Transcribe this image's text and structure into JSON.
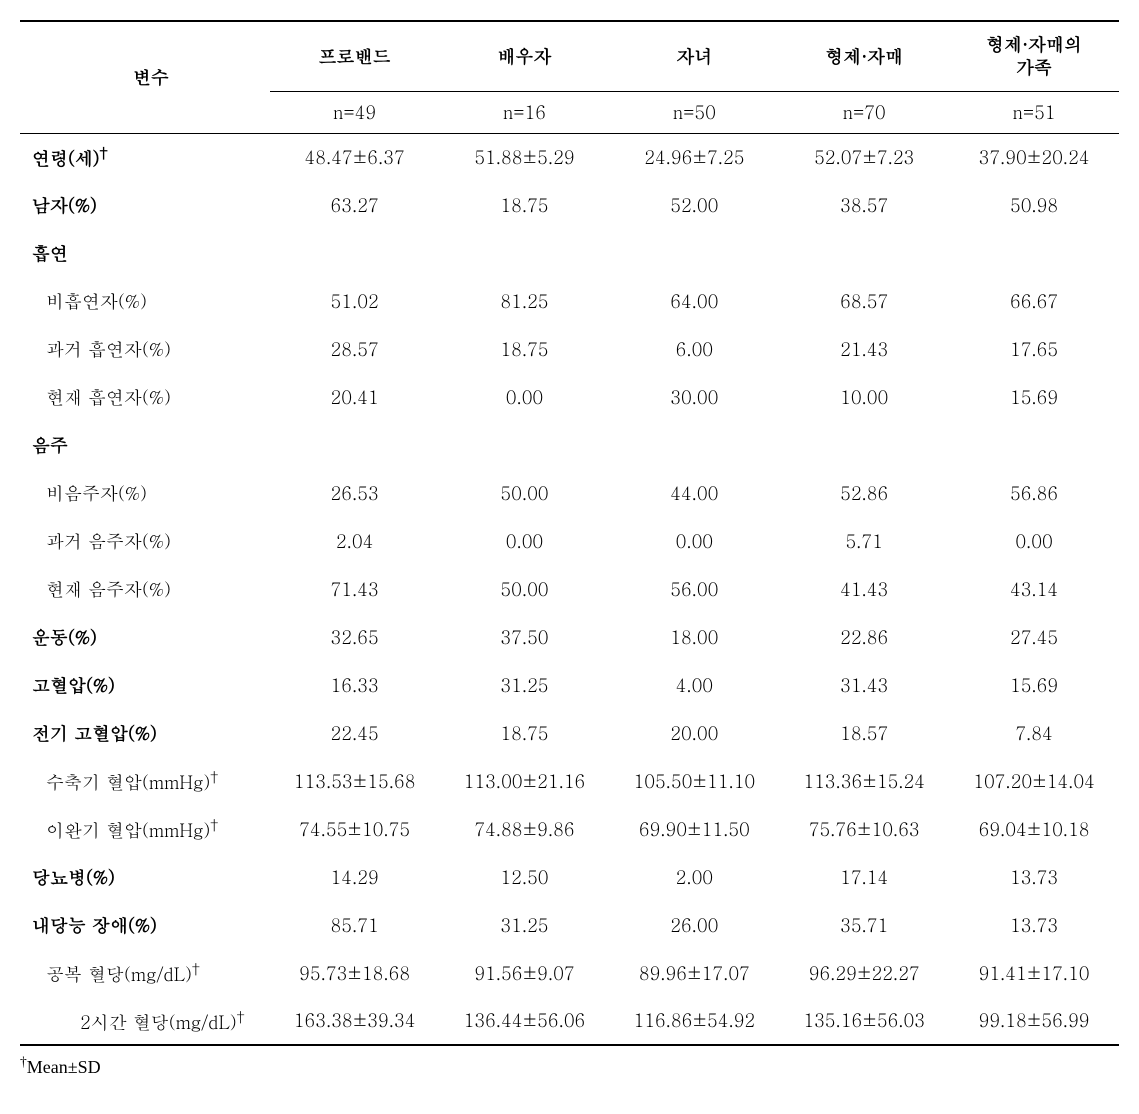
{
  "header": {
    "var_label": "변수",
    "groups": [
      "프로밴드",
      "배우자",
      "자녀",
      "형제·자매",
      "형제·자매의\n가족"
    ],
    "n_labels": [
      "n=49",
      "n=16",
      "n=50",
      "n=70",
      "n=51"
    ]
  },
  "rows": [
    {
      "label": "연령(세)†",
      "bold": true,
      "indent": 0,
      "values": [
        "48.47±6.37",
        "51.88±5.29",
        "24.96±7.25",
        "52.07±7.23",
        "37.90±20.24"
      ]
    },
    {
      "label": "남자(%)",
      "bold": true,
      "indent": 0,
      "values": [
        "63.27",
        "18.75",
        "52.00",
        "38.57",
        "50.98"
      ]
    },
    {
      "label": "흡연",
      "bold": true,
      "indent": 0,
      "section": true
    },
    {
      "label": "비흡연자(%)",
      "bold": false,
      "indent": 1,
      "values": [
        "51.02",
        "81.25",
        "64.00",
        "68.57",
        "66.67"
      ]
    },
    {
      "label": "과거 흡연자(%)",
      "bold": false,
      "indent": 1,
      "values": [
        "28.57",
        "18.75",
        "6.00",
        "21.43",
        "17.65"
      ]
    },
    {
      "label": "현재 흡연자(%)",
      "bold": false,
      "indent": 1,
      "values": [
        "20.41",
        "0.00",
        "30.00",
        "10.00",
        "15.69"
      ]
    },
    {
      "label": "음주",
      "bold": true,
      "indent": 0,
      "section": true
    },
    {
      "label": "비음주자(%)",
      "bold": false,
      "indent": 1,
      "values": [
        "26.53",
        "50.00",
        "44.00",
        "52.86",
        "56.86"
      ]
    },
    {
      "label": "과거 음주자(%)",
      "bold": false,
      "indent": 1,
      "values": [
        "2.04",
        "0.00",
        "0.00",
        "5.71",
        "0.00"
      ]
    },
    {
      "label": "현재 음주자(%)",
      "bold": false,
      "indent": 1,
      "values": [
        "71.43",
        "50.00",
        "56.00",
        "41.43",
        "43.14"
      ]
    },
    {
      "label": "운동(%)",
      "bold": true,
      "indent": 0,
      "values": [
        "32.65",
        "37.50",
        "18.00",
        "22.86",
        "27.45"
      ]
    },
    {
      "label": "고혈압(%)",
      "bold": true,
      "indent": 0,
      "values": [
        "16.33",
        "31.25",
        "4.00",
        "31.43",
        "15.69"
      ]
    },
    {
      "label": "전기 고혈압(%)",
      "bold": true,
      "indent": 0,
      "values": [
        "22.45",
        "18.75",
        "20.00",
        "18.57",
        "7.84"
      ]
    },
    {
      "label": "수축기 혈압(mmHg)†",
      "bold": false,
      "indent": 1,
      "values": [
        "113.53±15.68",
        "113.00±21.16",
        "105.50±11.10",
        "113.36±15.24",
        "107.20±14.04"
      ]
    },
    {
      "label": "이완기 혈압(mmHg)†",
      "bold": false,
      "indent": 1,
      "values": [
        "74.55±10.75",
        "74.88±9.86",
        "69.90±11.50",
        "75.76±10.63",
        "69.04±10.18"
      ]
    },
    {
      "label": "당뇨병(%)",
      "bold": true,
      "indent": 0,
      "values": [
        "14.29",
        "12.50",
        "2.00",
        "17.14",
        "13.73"
      ]
    },
    {
      "label": "내당능 장애(%)",
      "bold": true,
      "indent": 0,
      "values": [
        "85.71",
        "31.25",
        "26.00",
        "35.71",
        "13.73"
      ]
    },
    {
      "label": "공복 혈당(mg/dL)†",
      "bold": false,
      "indent": 1,
      "values": [
        "95.73±18.68",
        "91.56±9.07",
        "89.96±17.07",
        "96.29±22.27",
        "91.41±17.10"
      ]
    },
    {
      "label": "2시간 혈당(mg/dL)†",
      "bold": false,
      "indent": 2,
      "values": [
        "163.38±39.34",
        "136.44±56.06",
        "116.86±54.92",
        "135.16±56.03",
        "99.18±56.99"
      ]
    }
  ],
  "footnote": "†Mean±SD"
}
